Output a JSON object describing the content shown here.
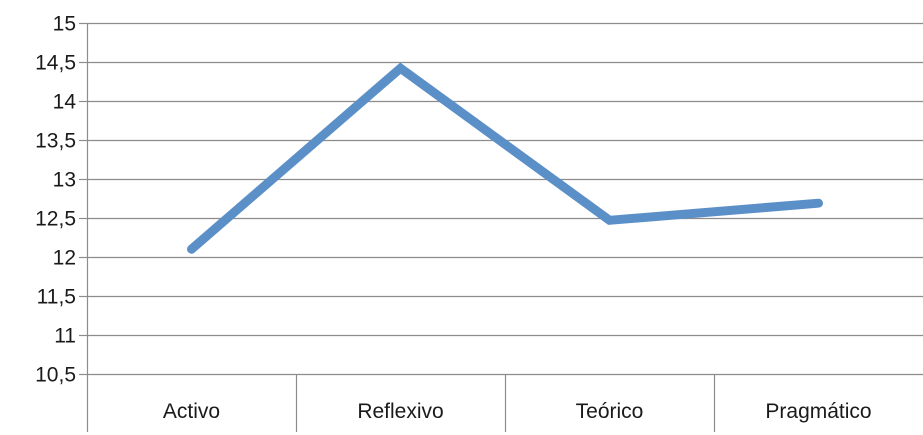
{
  "chart_data": {
    "type": "line",
    "title": "",
    "xlabel": "",
    "ylabel": "",
    "categories": [
      "Activo",
      "Reflexivo",
      "Teórico",
      "Pragmático"
    ],
    "series": [
      {
        "values": [
          12.1,
          14.42,
          12.47,
          12.69
        ]
      }
    ],
    "ylim": [
      10.5,
      15
    ],
    "yticks": [
      10.5,
      11,
      11.5,
      12,
      12.5,
      13,
      13.5,
      14,
      14.5,
      15
    ],
    "ytick_labels": [
      "10,5",
      "11",
      "11,5",
      "12",
      "12,5",
      "13",
      "13,5",
      "14",
      "14,5",
      "15"
    ],
    "grid": true,
    "legend": "none",
    "colors": {
      "series": "#5b8fc7",
      "grid": "#8c8c8c",
      "text": "#1a1a1a"
    }
  }
}
